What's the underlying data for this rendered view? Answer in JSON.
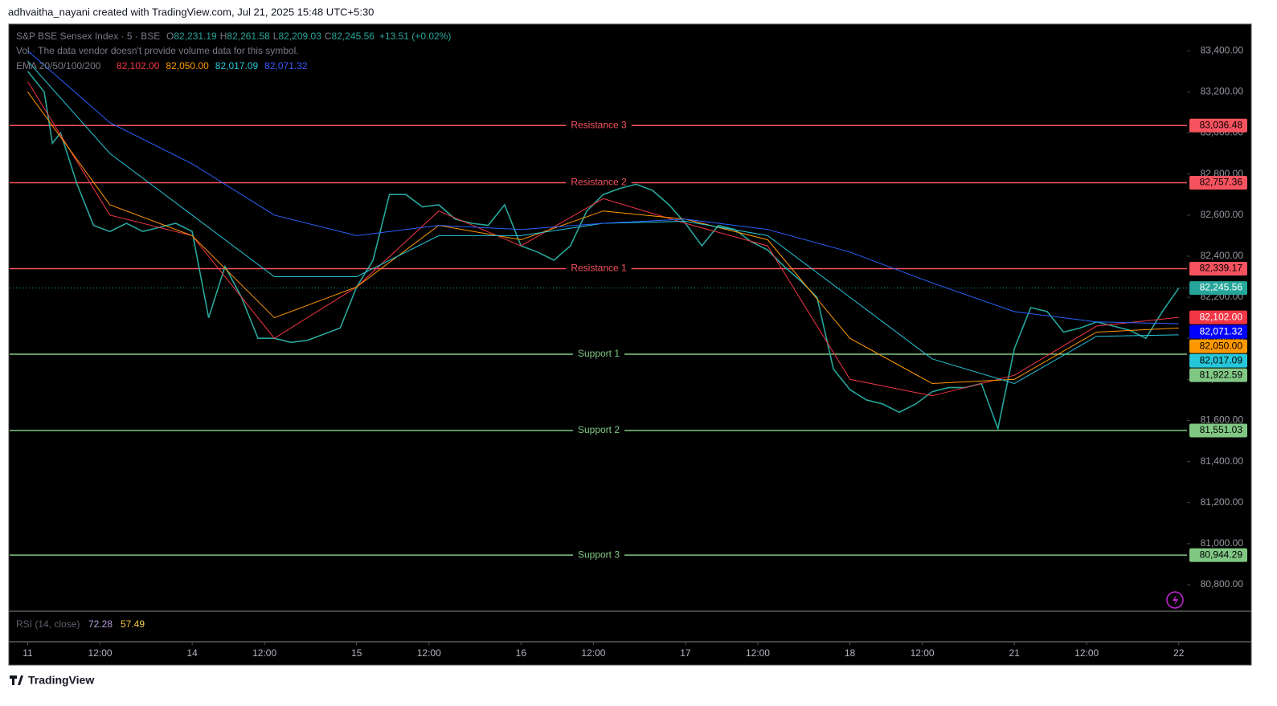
{
  "header": "adhvaitha_nayani created with TradingView.com, Jul 21, 2025 15:48 UTC+5:30",
  "legend": {
    "symbol": "S&P BSE Sensex Index · 5 · BSE",
    "ohlc": [
      {
        "key": "O",
        "value": "82,231.19"
      },
      {
        "key": "H",
        "value": "82,261.58"
      },
      {
        "key": "L",
        "value": "82,209.03"
      },
      {
        "key": "C",
        "value": "82,245.56"
      }
    ],
    "change": "+13.51 (+0.02%)",
    "volume": "Vol · The data vendor doesn't provide volume data for this symbol.",
    "ema": "EMA 20/50/100/200"
  },
  "rsi": {
    "title": "RSI (14, close)",
    "values": [
      "72.28",
      "57.49"
    ]
  },
  "footer": "TradingView",
  "chart_data": {
    "type": "line",
    "xlim": [
      -1.1,
      70.5
    ],
    "ylim": [
      80675,
      83530
    ],
    "xticks": [
      {
        "value": 0,
        "label": "11"
      },
      {
        "value": 4.4,
        "label": "12:00"
      },
      {
        "value": 10,
        "label": "14"
      },
      {
        "value": 14.4,
        "label": "12:00"
      },
      {
        "value": 20,
        "label": "15"
      },
      {
        "value": 24.4,
        "label": "12:00"
      },
      {
        "value": 30,
        "label": "16"
      },
      {
        "value": 34.4,
        "label": "12:00"
      },
      {
        "value": 40,
        "label": "17"
      },
      {
        "value": 44.4,
        "label": "12:00"
      },
      {
        "value": 50,
        "label": "18"
      },
      {
        "value": 54.4,
        "label": "12:00"
      },
      {
        "value": 60,
        "label": "21"
      },
      {
        "value": 64.4,
        "label": "12:00"
      },
      {
        "value": 70,
        "label": "22"
      }
    ],
    "yticks": [
      {
        "value": 83400,
        "label": "83,400.00"
      },
      {
        "value": 83200,
        "label": "83,200.00"
      },
      {
        "value": 83000,
        "label": "83,000.00"
      },
      {
        "value": 82800,
        "label": "82,800.00"
      },
      {
        "value": 82600,
        "label": "82,600.00"
      },
      {
        "value": 82400,
        "label": "82,400.00"
      },
      {
        "value": 82200,
        "label": "82,200.00"
      },
      {
        "value": 82000,
        "label": "82,000.00"
      },
      {
        "value": 81800,
        "label": "81,800.00"
      },
      {
        "value": 81600,
        "label": "81,600.00"
      },
      {
        "value": 81400,
        "label": "81,400.00"
      },
      {
        "value": 81200,
        "label": "81,200.00"
      },
      {
        "value": 81000,
        "label": "81,000.00"
      },
      {
        "value": 80800,
        "label": "80,800.00"
      }
    ],
    "grid": false,
    "series": [
      {
        "color": "#26a69a",
        "width": 1.6,
        "value_label": "82,245.56",
        "x": [
          0,
          1,
          1.5,
          2,
          3,
          4,
          5,
          6,
          7,
          8,
          9,
          10,
          11,
          12,
          13,
          14,
          15,
          16,
          17,
          18,
          19,
          20,
          21,
          22,
          23,
          24,
          25,
          26,
          27,
          28,
          29,
          30,
          31,
          32,
          33,
          34,
          35,
          36,
          37,
          38,
          39,
          40,
          41,
          42,
          43,
          44,
          45,
          46,
          47,
          48,
          49,
          50,
          51,
          52,
          53,
          54,
          55,
          56,
          57,
          58,
          59,
          60,
          61,
          62,
          63,
          64,
          65,
          66,
          67,
          68,
          69,
          70
        ],
        "values": [
          83300,
          83200,
          82950,
          83000,
          82750,
          82550,
          82520,
          82560,
          82520,
          82540,
          82560,
          82520,
          82100,
          82350,
          82200,
          82000,
          82000,
          81980,
          81990,
          82020,
          82050,
          82250,
          82380,
          82700,
          82700,
          82640,
          82650,
          82580,
          82560,
          82550,
          82650,
          82450,
          82420,
          82380,
          82450,
          82620,
          82700,
          82730,
          82750,
          82720,
          82650,
          82560,
          82450,
          82550,
          82530,
          82470,
          82430,
          82350,
          82280,
          82200,
          81850,
          81750,
          81700,
          81680,
          81640,
          81680,
          81740,
          81760,
          81760,
          81780,
          81560,
          81950,
          82150,
          82130,
          82030,
          82050,
          82080,
          82060,
          82040,
          82000,
          82130,
          82245
        ]
      },
      {
        "color": "#f23645",
        "width": 1,
        "value_label": "82,102.00",
        "x": [
          0,
          5,
          10,
          15,
          20,
          25,
          30,
          35,
          40,
          45,
          50,
          55,
          60,
          65,
          70
        ],
        "values": [
          83250,
          82600,
          82500,
          82000,
          82250,
          82620,
          82450,
          82680,
          82560,
          82450,
          81800,
          81720,
          81820,
          82060,
          82102
        ]
      },
      {
        "color": "#ff9800",
        "width": 1,
        "value_label": "82,050.00",
        "x": [
          0,
          5,
          10,
          15,
          20,
          25,
          30,
          35,
          40,
          45,
          50,
          55,
          60,
          65,
          70
        ],
        "values": [
          83200,
          82650,
          82500,
          82100,
          82250,
          82550,
          82480,
          82620,
          82580,
          82480,
          82000,
          81780,
          81800,
          82030,
          82050
        ]
      },
      {
        "color": "#26c6da",
        "width": 1,
        "value_label": "82,017.09",
        "x": [
          0,
          5,
          10,
          15,
          20,
          25,
          30,
          35,
          40,
          45,
          50,
          55,
          60,
          65,
          70
        ],
        "values": [
          83350,
          82900,
          82600,
          82300,
          82300,
          82500,
          82500,
          82560,
          82570,
          82500,
          82200,
          81900,
          81780,
          82010,
          82017
        ]
      },
      {
        "color": "#2962ff",
        "width": 1,
        "value_label": "82,071.32",
        "x": [
          0,
          5,
          10,
          15,
          20,
          25,
          30,
          35,
          40,
          45,
          50,
          55,
          60,
          65,
          70
        ],
        "values": [
          83400,
          83050,
          82850,
          82600,
          82500,
          82550,
          82530,
          82560,
          82580,
          82530,
          82420,
          82270,
          82130,
          82080,
          82071
        ]
      }
    ],
    "levels": [
      {
        "label": "Resistance 3",
        "value": 83036.48,
        "value_label": "83,036.48",
        "color": "#f7525f"
      },
      {
        "label": "Resistance 2",
        "value": 82757.36,
        "value_label": "82,757.36",
        "color": "#f7525f"
      },
      {
        "label": "Resistance 1",
        "value": 82339.17,
        "value_label": "82,339.17",
        "color": "#f7525f"
      },
      {
        "label": "Support 1",
        "value": 81922.59,
        "value_label": "81,922.59",
        "color": "#81c784"
      },
      {
        "label": "Support 2",
        "value": 81551.03,
        "value_label": "81,551.03",
        "color": "#81c784"
      },
      {
        "label": "Support 3",
        "value": 80944.29,
        "value_label": "80,944.29",
        "color": "#81c784"
      }
    ]
  }
}
